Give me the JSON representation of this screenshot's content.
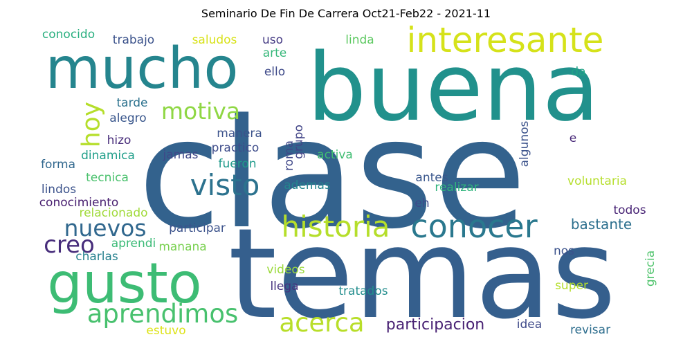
{
  "chart_data": {
    "type": "wordcloud",
    "title": "Seminario De Fin De Carrera Oct21-Feb22 - 2021-11",
    "background": "#ffffff",
    "colormap": "viridis",
    "words": [
      {
        "text": "clase",
        "weight": 100,
        "color": "#33628d",
        "orientation": "horizontal"
      },
      {
        "text": "temas",
        "weight": 95,
        "color": "#355f8d",
        "orientation": "horizontal"
      },
      {
        "text": "buena",
        "weight": 70,
        "color": "#21918c",
        "orientation": "horizontal"
      },
      {
        "text": "mucho",
        "weight": 46,
        "color": "#25858e",
        "orientation": "horizontal"
      },
      {
        "text": "gusto",
        "weight": 46,
        "color": "#3dbc74",
        "orientation": "horizontal"
      },
      {
        "text": "interesante",
        "weight": 30,
        "color": "#d5e21a",
        "orientation": "horizontal"
      },
      {
        "text": "conocer",
        "weight": 26,
        "color": "#2a788e",
        "orientation": "horizontal"
      },
      {
        "text": "historia",
        "weight": 24,
        "color": "#b5de2b",
        "orientation": "horizontal"
      },
      {
        "text": "visto",
        "weight": 24,
        "color": "#2c728e",
        "orientation": "horizontal"
      },
      {
        "text": "aprendimos",
        "weight": 22,
        "color": "#48c16e",
        "orientation": "horizontal"
      },
      {
        "text": "acerca",
        "weight": 22,
        "color": "#b8de29",
        "orientation": "horizontal"
      },
      {
        "text": "motiva",
        "weight": 20,
        "color": "#8fd744",
        "orientation": "horizontal"
      },
      {
        "text": "nuevos",
        "weight": 20,
        "color": "#31688e",
        "orientation": "horizontal"
      },
      {
        "text": "creo",
        "weight": 20,
        "color": "#472d7b",
        "orientation": "horizontal"
      },
      {
        "text": "hoy",
        "weight": 20,
        "color": "#b5de2b",
        "orientation": "vertical"
      },
      {
        "text": "participacion",
        "weight": 14,
        "color": "#482173",
        "orientation": "horizontal"
      },
      {
        "text": "bastante",
        "weight": 13,
        "color": "#2d708e",
        "orientation": "horizontal"
      },
      {
        "text": "conocido",
        "weight": 11,
        "color": "#29af7f",
        "orientation": "horizontal"
      },
      {
        "text": "trabajo",
        "weight": 11,
        "color": "#3b528b",
        "orientation": "horizontal"
      },
      {
        "text": "saludos",
        "weight": 11,
        "color": "#d8e219",
        "orientation": "horizontal"
      },
      {
        "text": "uso",
        "weight": 11,
        "color": "#443a83",
        "orientation": "horizontal"
      },
      {
        "text": "linda",
        "weight": 11,
        "color": "#5ec962",
        "orientation": "horizontal"
      },
      {
        "text": "arte",
        "weight": 11,
        "color": "#35b779",
        "orientation": "horizontal"
      },
      {
        "text": "ello",
        "weight": 11,
        "color": "#3e4a89",
        "orientation": "horizontal"
      },
      {
        "text": "da",
        "weight": 11,
        "color": "#20a386",
        "orientation": "horizontal"
      },
      {
        "text": "tarde",
        "weight": 11,
        "color": "#2c728e",
        "orientation": "horizontal"
      },
      {
        "text": "alegro",
        "weight": 11,
        "color": "#39568c",
        "orientation": "horizontal"
      },
      {
        "text": "hizo",
        "weight": 11,
        "color": "#472c7a",
        "orientation": "horizontal"
      },
      {
        "text": "manera",
        "weight": 11,
        "color": "#3b528b",
        "orientation": "horizontal"
      },
      {
        "text": "practico",
        "weight": 11,
        "color": "#3e4c8a",
        "orientation": "horizontal"
      },
      {
        "text": "grupo",
        "weight": 11,
        "color": "#414487",
        "orientation": "vertical"
      },
      {
        "text": "algunos",
        "weight": 11,
        "color": "#3b528b",
        "orientation": "vertical"
      },
      {
        "text": "e",
        "weight": 11,
        "color": "#482878",
        "orientation": "horizontal"
      },
      {
        "text": "dinamica",
        "weight": 11,
        "color": "#1f9e89",
        "orientation": "horizontal"
      },
      {
        "text": "jamas",
        "weight": 11,
        "color": "#3f4889",
        "orientation": "horizontal"
      },
      {
        "text": "forma",
        "weight": 11,
        "color": "#31688e",
        "orientation": "horizontal"
      },
      {
        "text": "fueron",
        "weight": 11,
        "color": "#1f9a8a",
        "orientation": "horizontal"
      },
      {
        "text": "roma",
        "weight": 11,
        "color": "#3f4788",
        "orientation": "vertical"
      },
      {
        "text": "activa",
        "weight": 11,
        "color": "#40bd72",
        "orientation": "horizontal"
      },
      {
        "text": "tecnica",
        "weight": 11,
        "color": "#4ac16d",
        "orientation": "horizontal"
      },
      {
        "text": "antes",
        "weight": 11,
        "color": "#39568c",
        "orientation": "horizontal"
      },
      {
        "text": "voluntaria",
        "weight": 11,
        "color": "#b5de2b",
        "orientation": "horizontal"
      },
      {
        "text": "lindos",
        "weight": 11,
        "color": "#3b528b",
        "orientation": "horizontal"
      },
      {
        "text": "ademas",
        "weight": 11,
        "color": "#24868e",
        "orientation": "horizontal"
      },
      {
        "text": "realizar",
        "weight": 11,
        "color": "#2fb47c",
        "orientation": "horizontal"
      },
      {
        "text": "conocimiento",
        "weight": 11,
        "color": "#481f70",
        "orientation": "horizontal"
      },
      {
        "text": "eh",
        "weight": 11,
        "color": "#3e4989",
        "orientation": "horizontal"
      },
      {
        "text": "relacionado",
        "weight": 11,
        "color": "#a0da39",
        "orientation": "horizontal"
      },
      {
        "text": "todos",
        "weight": 11,
        "color": "#482475",
        "orientation": "horizontal"
      },
      {
        "text": "participar",
        "weight": 11,
        "color": "#3b528b",
        "orientation": "horizontal"
      },
      {
        "text": "aprendi",
        "weight": 11,
        "color": "#3aba76",
        "orientation": "horizontal"
      },
      {
        "text": "manana",
        "weight": 11,
        "color": "#7ad151",
        "orientation": "horizontal"
      },
      {
        "text": "charlas",
        "weight": 11,
        "color": "#26818e",
        "orientation": "horizontal"
      },
      {
        "text": "nos",
        "weight": 11,
        "color": "#3b528b",
        "orientation": "horizontal"
      },
      {
        "text": "grecia",
        "weight": 11,
        "color": "#4ec36b",
        "orientation": "vertical"
      },
      {
        "text": "videos",
        "weight": 11,
        "color": "#9bd93c",
        "orientation": "horizontal"
      },
      {
        "text": "llega",
        "weight": 11,
        "color": "#46327e",
        "orientation": "horizontal"
      },
      {
        "text": "tratados",
        "weight": 11,
        "color": "#228d8d",
        "orientation": "horizontal"
      },
      {
        "text": "super",
        "weight": 11,
        "color": "#b5de2b",
        "orientation": "horizontal"
      },
      {
        "text": "idea",
        "weight": 11,
        "color": "#3e4989",
        "orientation": "horizontal"
      },
      {
        "text": "revisar",
        "weight": 11,
        "color": "#2e6e8e",
        "orientation": "horizontal"
      },
      {
        "text": "estuvo",
        "weight": 11,
        "color": "#dde318",
        "orientation": "horizontal"
      }
    ]
  }
}
